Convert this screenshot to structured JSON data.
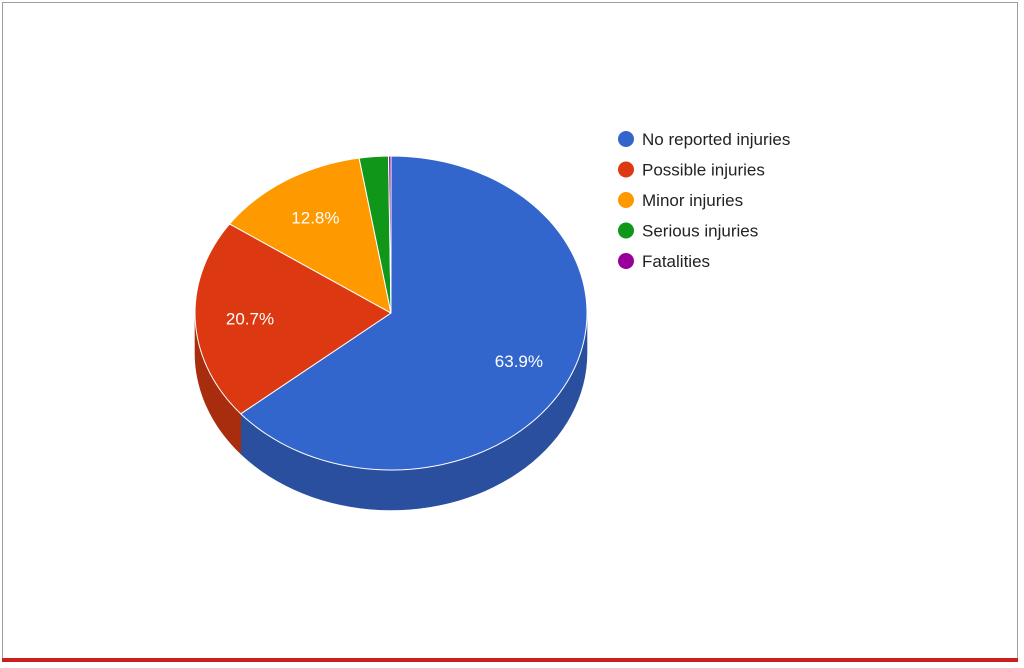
{
  "chart_data": {
    "type": "pie",
    "style": "3d",
    "categories": [
      "No reported injuries",
      "Possible injuries",
      "Minor injuries",
      "Serious injuries",
      "Fatalities"
    ],
    "values": [
      63.9,
      20.7,
      12.8,
      2.4,
      0.2
    ],
    "data_labels": [
      "63.9%",
      "20.7%",
      "12.8%",
      "",
      ""
    ],
    "colors": [
      "#3366cc",
      "#dc3912",
      "#ff9900",
      "#109618",
      "#990099"
    ],
    "side_colors": [
      "#2a4f9e",
      "#a82c0e",
      "#c47600",
      "#0c7312",
      "#740074"
    ],
    "legend_position": "right",
    "title": ""
  },
  "frame": {
    "bottom_rule_color": "#cc1f1f"
  }
}
